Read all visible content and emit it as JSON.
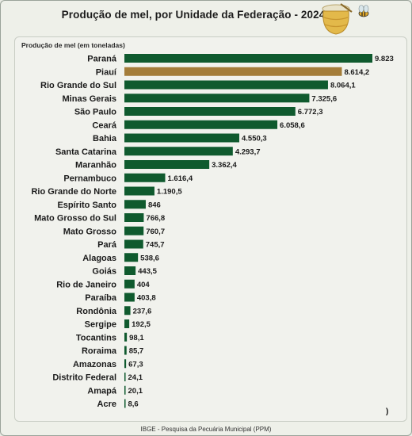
{
  "header": {
    "title": "Produção de mel, por Unidade da Federação - 2024",
    "logo_icon": "honey-pot-bee-icon"
  },
  "footer": {
    "source": "IBGE - Pesquisa da Pecuária Municipal (PPM)",
    "corner_mark": ")"
  },
  "colors": {
    "bar": "#0f5a2e",
    "highlight": "#a47d3a"
  },
  "chart_data": {
    "type": "bar",
    "orientation": "horizontal",
    "title": "Produção de mel, por Unidade da Federação - 2024",
    "subtitle": "Produção de mel (em toneladas)",
    "highlight_category": "Piauí",
    "categories": [
      "Paraná",
      "Piauí",
      "Rio Grande do Sul",
      "Minas Gerais",
      "São Paulo",
      "Ceará",
      "Bahia",
      "Santa Catarina",
      "Maranhão",
      "Pernambuco",
      "Rio Grande do Norte",
      "Espírito Santo",
      "Mato Grosso do Sul",
      "Mato Grosso",
      "Pará",
      "Alagoas",
      "Goiás",
      "Rio de Janeiro",
      "Paraíba",
      "Rondônia",
      "Sergipe",
      "Tocantins",
      "Roraima",
      "Amazonas",
      "Distrito Federal",
      "Amapá",
      "Acre"
    ],
    "values": [
      9823,
      8614.2,
      8064.1,
      7325.6,
      6772.3,
      6058.6,
      4550.3,
      4293.7,
      3362.4,
      1616.4,
      1190.5,
      846,
      766.8,
      760.7,
      745.7,
      538.6,
      443.5,
      404,
      403.8,
      237.6,
      192.5,
      98.1,
      85.7,
      67.3,
      24.1,
      20.1,
      8.6
    ],
    "value_labels": [
      "9.823",
      "8.614,2",
      "8.064,1",
      "7.325,6",
      "6.772,3",
      "6.058,6",
      "4.550,3",
      "4.293,7",
      "3.362,4",
      "1.616,4",
      "1.190,5",
      "846",
      "766,8",
      "760,7",
      "745,7",
      "538,6",
      "443,5",
      "404",
      "403,8",
      "237,6",
      "192,5",
      "98,1",
      "85,7",
      "67,3",
      "24,1",
      "20,1",
      "8,6"
    ],
    "xlim": [
      0,
      9823
    ],
    "grid": false,
    "legend": "none"
  }
}
